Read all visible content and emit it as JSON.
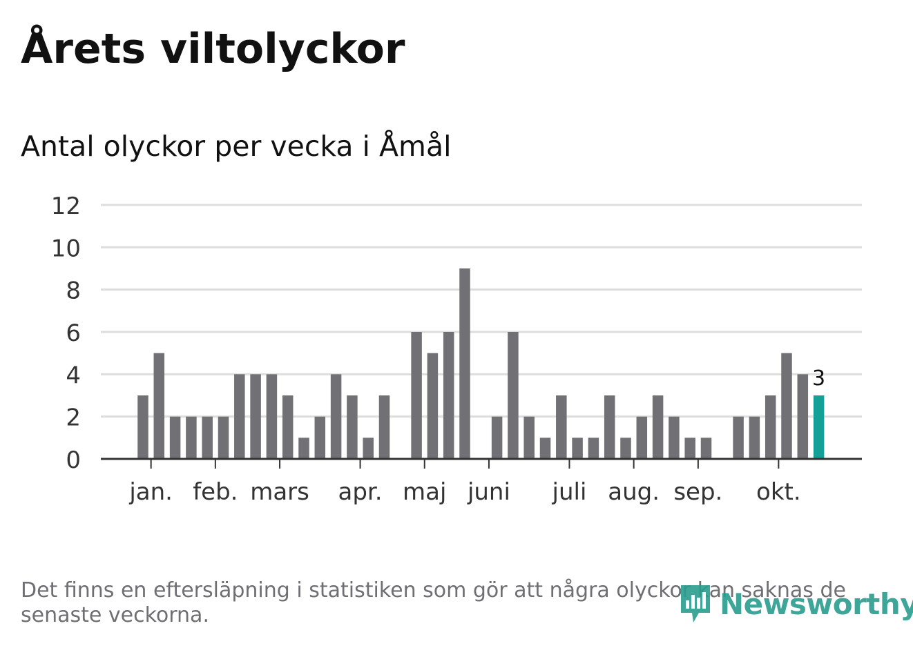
{
  "title": "Årets viltolyckor",
  "subtitle": "Antal olyckor per vecka i Åmål",
  "footnote": "Det finns en eftersläpning i statistiken som gör att några olyckor kan saknas de senaste veckorna.",
  "logo_text": "Newsworthy",
  "colors": {
    "bar": "#707075",
    "highlight": "#12a097",
    "grid": "#dddddd",
    "axis": "#333333",
    "text": "#333333",
    "logo": "#2a9d8f"
  },
  "chart_data": {
    "type": "bar",
    "title": "Antal olyckor per vecka i Åmål",
    "xlabel": "",
    "ylabel": "",
    "ylim": [
      0,
      12
    ],
    "yticks": [
      0,
      2,
      4,
      6,
      8,
      10,
      12
    ],
    "grid": true,
    "weeks": [
      1,
      2,
      3,
      4,
      5,
      6,
      7,
      8,
      9,
      10,
      11,
      12,
      13,
      14,
      15,
      16,
      17,
      18,
      19,
      20,
      21,
      22,
      23,
      24,
      25,
      26,
      27,
      28,
      29,
      30,
      31,
      32,
      33,
      34,
      35,
      36,
      37,
      38,
      39,
      40,
      41,
      42,
      43
    ],
    "values": [
      3,
      5,
      2,
      2,
      2,
      2,
      4,
      4,
      4,
      3,
      1,
      2,
      4,
      3,
      1,
      3,
      0,
      6,
      5,
      6,
      9,
      0,
      2,
      6,
      2,
      1,
      3,
      1,
      1,
      3,
      1,
      2,
      3,
      2,
      1,
      1,
      0,
      2,
      2,
      3,
      5,
      4,
      3
    ],
    "highlight_index": 42,
    "highlight_label": "3",
    "month_ticks": [
      {
        "label": "jan.",
        "week": 1.5
      },
      {
        "label": "feb.",
        "week": 5.5
      },
      {
        "label": "mars",
        "week": 9.5
      },
      {
        "label": "apr.",
        "week": 14.5
      },
      {
        "label": "maj",
        "week": 18.5
      },
      {
        "label": "juni",
        "week": 22.5
      },
      {
        "label": "juli",
        "week": 27.5
      },
      {
        "label": "aug.",
        "week": 31.5
      },
      {
        "label": "sep.",
        "week": 35.5
      },
      {
        "label": "okt.",
        "week": 40.5
      }
    ]
  }
}
